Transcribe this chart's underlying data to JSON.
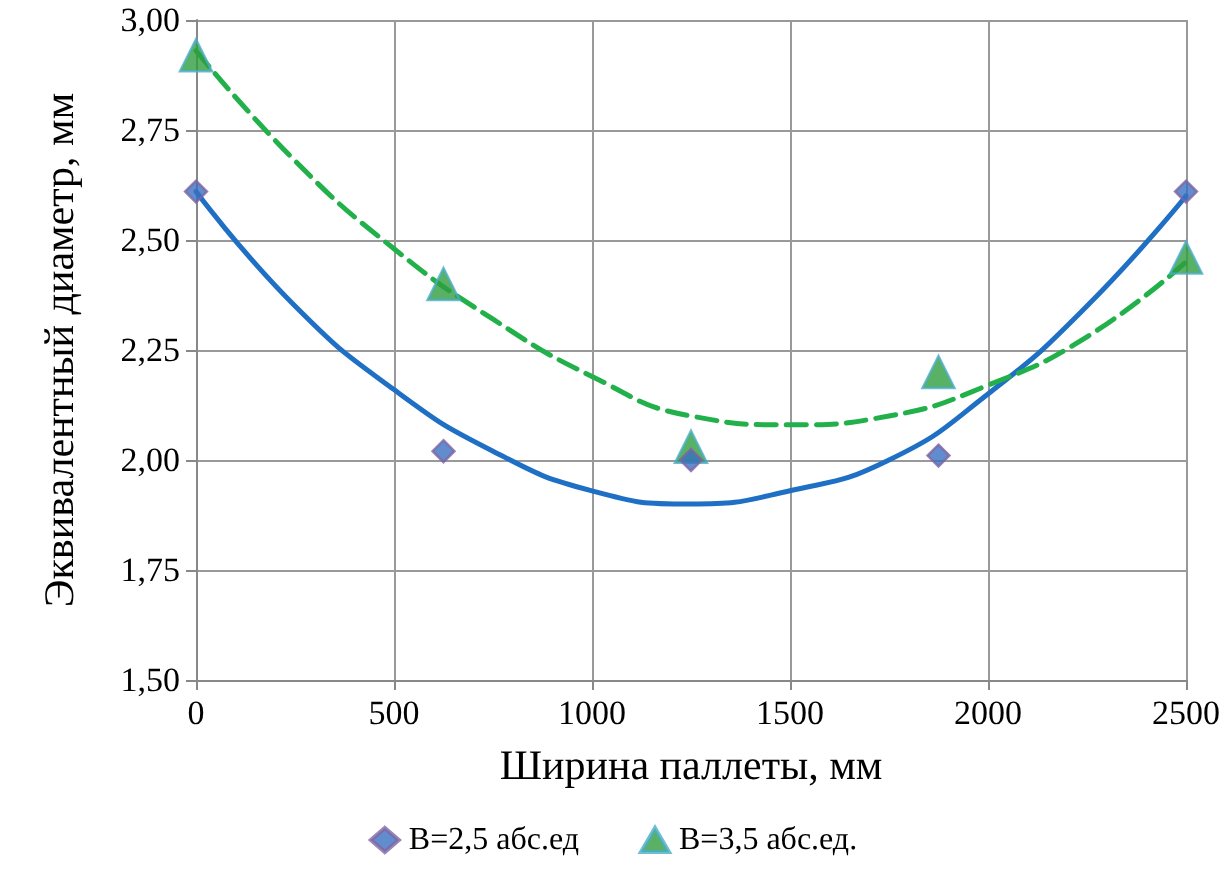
{
  "chart_data": {
    "type": "scatter",
    "xlabel": "Ширина паллеты, мм",
    "ylabel": "Эквивалентный диаметр, мм",
    "xlim": [
      0,
      2500
    ],
    "xticks": [
      0,
      500,
      1000,
      1500,
      2000,
      2500
    ],
    "ylim": [
      1.5,
      3.0
    ],
    "yticks": [
      {
        "value": 1.5,
        "label": "1,50"
      },
      {
        "value": 1.75,
        "label": "1,75"
      },
      {
        "value": 2.0,
        "label": "2,00"
      },
      {
        "value": 2.25,
        "label": "2,25"
      },
      {
        "value": 2.5,
        "label": "2,50"
      },
      {
        "value": 2.75,
        "label": "2,75"
      },
      {
        "value": 3.0,
        "label": "3,00"
      }
    ],
    "grid": true,
    "legend": "bottom",
    "series": [
      {
        "type": "line",
        "marker": "none",
        "line_style": "solid",
        "color": "#1f6fc5",
        "x": [
          0,
          250,
          500,
          750,
          1000,
          1250,
          1500,
          1750,
          2000,
          2250,
          2500
        ],
        "values": [
          2.61,
          2.35,
          2.16,
          2.02,
          1.93,
          1.9,
          1.93,
          2.0,
          2.15,
          2.35,
          2.6
        ]
      },
      {
        "type": "line",
        "marker": "none",
        "line_style": "dashed",
        "color": "#22b04a",
        "x": [
          0,
          250,
          500,
          750,
          1000,
          1250,
          1500,
          1750,
          2000,
          2250,
          2500
        ],
        "values": [
          2.93,
          2.68,
          2.48,
          2.32,
          2.19,
          2.1,
          2.08,
          2.1,
          2.17,
          2.28,
          2.45
        ]
      },
      {
        "marker": "diamond",
        "name": "B=2,5 абс.ед",
        "color": "#3a6fc0",
        "x": [
          0,
          625,
          1250,
          1875,
          2500
        ],
        "values": [
          2.61,
          2.02,
          2.0,
          2.01,
          2.61
        ]
      },
      {
        "marker": "triangle",
        "name": "B=3,5 абс.ед.",
        "color": "#2e9e3e",
        "x": [
          0,
          625,
          1250,
          1875,
          2500
        ],
        "values": [
          2.92,
          2.4,
          2.03,
          2.2,
          2.46
        ]
      }
    ]
  }
}
